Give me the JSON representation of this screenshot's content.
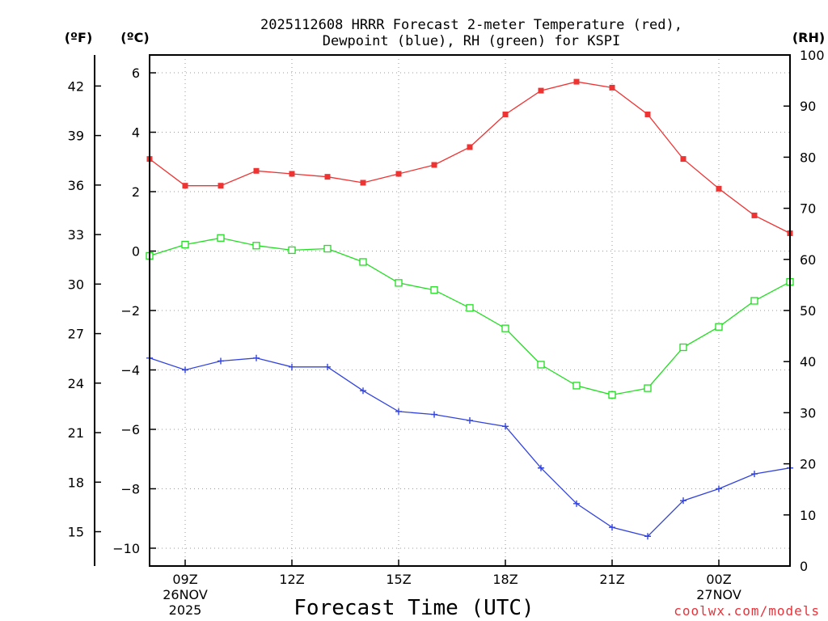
{
  "chart_data": {
    "type": "line",
    "title": "2025112608 HRRR Forecast 2-meter Temperature (red),",
    "title_line2": "Dewpoint (blue), RH (green) for KSPI",
    "xlabel": "Forecast Time (UTC)",
    "credit": "coolwx.com/models",
    "units": {
      "fahrenheit": "(ºF)",
      "celsius": "(ºC)",
      "rh": "(RH)"
    },
    "x_hours": [
      8,
      9,
      10,
      11,
      12,
      13,
      14,
      15,
      16,
      17,
      18,
      19,
      20,
      21,
      22,
      23,
      24,
      25,
      26
    ],
    "x_range": [
      8,
      26
    ],
    "x_ticks": [
      {
        "hour": 9,
        "lines": [
          "09Z",
          "26NOV",
          "2025"
        ]
      },
      {
        "hour": 12,
        "lines": [
          "12Z"
        ]
      },
      {
        "hour": 15,
        "lines": [
          "15Z"
        ]
      },
      {
        "hour": 18,
        "lines": [
          "18Z"
        ]
      },
      {
        "hour": 21,
        "lines": [
          "21Z"
        ]
      },
      {
        "hour": 24,
        "lines": [
          "00Z",
          "27NOV"
        ]
      }
    ],
    "celsius_range": [
      -10.6,
      6.6
    ],
    "celsius_ticks": [
      "6",
      "4",
      "2",
      "0",
      "−2",
      "−4",
      "−6",
      "−8",
      "−10"
    ],
    "celsius_tick_values": [
      6,
      4,
      2,
      0,
      -2,
      -4,
      -6,
      -8,
      -10
    ],
    "fahrenheit_ticks": [
      "42",
      "39",
      "36",
      "33",
      "30",
      "27",
      "24",
      "21",
      "18",
      "15"
    ],
    "fahrenheit_tick_values": [
      42,
      39,
      36,
      33,
      30,
      27,
      24,
      21,
      18,
      15
    ],
    "rh_range": [
      0,
      100
    ],
    "rh_ticks": [
      "100",
      "90",
      "80",
      "70",
      "60",
      "50",
      "40",
      "30",
      "20",
      "10",
      "0"
    ],
    "rh_tick_values": [
      100,
      90,
      80,
      70,
      60,
      50,
      40,
      30,
      20,
      10,
      0
    ],
    "series": [
      {
        "name": "Temperature",
        "axis": "celsius",
        "color": "#ee3333",
        "marker": "filled-square",
        "values": [
          3.1,
          2.2,
          2.2,
          2.7,
          2.6,
          2.5,
          2.3,
          2.6,
          2.9,
          3.5,
          4.6,
          5.4,
          5.7,
          5.5,
          4.6,
          3.1,
          2.1,
          1.2,
          0.6
        ]
      },
      {
        "name": "Dewpoint",
        "axis": "celsius",
        "color": "#3344dd",
        "marker": "plus",
        "values": [
          -3.6,
          -4.0,
          -3.7,
          -3.6,
          -3.9,
          -3.9,
          -4.7,
          -5.4,
          -5.5,
          -5.7,
          -5.9,
          -7.3,
          -8.5,
          -9.3,
          -9.6,
          -8.4,
          -8.0,
          -7.5,
          -7.3
        ]
      },
      {
        "name": "RH",
        "axis": "rh",
        "color": "#22dd22",
        "marker": "open-square",
        "values": [
          60.7,
          62.9,
          64.2,
          62.7,
          61.8,
          62.1,
          59.5,
          55.4,
          54.0,
          50.5,
          46.5,
          39.4,
          35.3,
          33.5,
          34.8,
          42.8,
          46.8,
          51.9,
          55.6
        ]
      }
    ]
  }
}
